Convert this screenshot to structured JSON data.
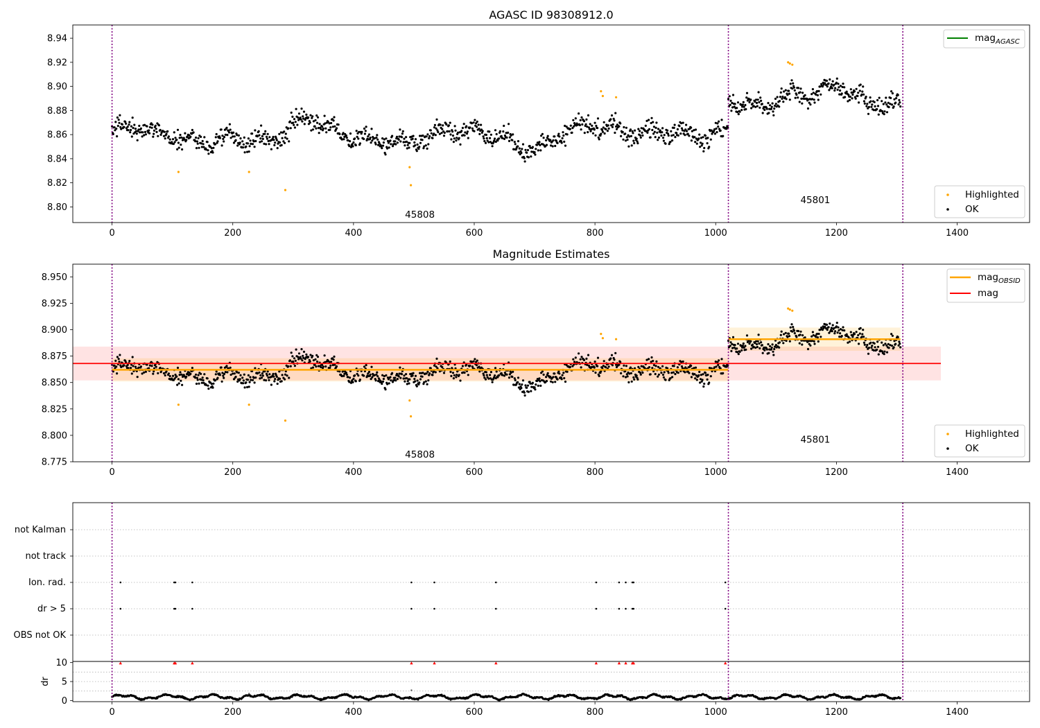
{
  "chart_data": [
    {
      "type": "scatter",
      "title": "AGASC ID 98308912.0",
      "xlim": [
        -65,
        1520
      ],
      "ylim": [
        8.787,
        8.951
      ],
      "xticks": [
        0,
        200,
        400,
        600,
        800,
        1000,
        1200,
        1400
      ],
      "yticks": [
        8.8,
        8.82,
        8.84,
        8.86,
        8.88,
        8.9,
        8.92,
        8.94
      ],
      "obsid_boundaries": [
        0,
        1021,
        1310
      ],
      "obsid_labels": [
        {
          "text": "45808",
          "x": 510,
          "y": 8.791
        },
        {
          "text": "45801",
          "x": 1165,
          "y": 8.803
        }
      ],
      "legends": [
        {
          "placement": "top-right",
          "entries": [
            {
              "label": "mag",
              "sub": "AGASC",
              "color": "#008000",
              "marker": "line"
            }
          ]
        },
        {
          "placement": "bottom-right",
          "entries": [
            {
              "label": "Highlighted",
              "color": "#ffa500",
              "marker": "dot"
            },
            {
              "label": "OK",
              "color": "#000000",
              "marker": "dot"
            }
          ]
        }
      ],
      "series": [
        {
          "name": "Highlighted",
          "color": "#ffa500",
          "points": [
            [
              110,
              8.829
            ],
            [
              227,
              8.829
            ],
            [
              287,
              8.814
            ],
            [
              493,
              8.833
            ],
            [
              495,
              8.818
            ],
            [
              810,
              8.896
            ],
            [
              813,
              8.892
            ],
            [
              835,
              8.891
            ],
            [
              1120,
              8.92
            ],
            [
              1123,
              8.919
            ],
            [
              1127,
              8.918
            ]
          ]
        },
        {
          "name": "OK",
          "color": "#000000",
          "ranges": [
            {
              "x": [
                0,
                1020
              ],
              "trend": [
                [
                  0,
                  8.863
                ],
                [
                  100,
                  8.862
                ],
                [
                  160,
                  8.852
                ],
                [
                  260,
                  8.858
                ],
                [
                  320,
                  8.87
                ],
                [
                  420,
                  8.858
                ],
                [
                  490,
                  8.85
                ],
                [
                  560,
                  8.868
                ],
                [
                  620,
                  8.86
                ],
                [
                  680,
                  8.848
                ],
                [
                  750,
                  8.862
                ],
                [
                  820,
                  8.868
                ],
                [
                  900,
                  8.86
                ],
                [
                  960,
                  8.858
                ],
                [
                  1020,
                  8.866
                ]
              ],
              "spread": 0.014
            },
            {
              "x": [
                1021,
                1306
              ],
              "trend": [
                [
                  1021,
                  8.89
                ],
                [
                  1080,
                  8.88
                ],
                [
                  1130,
                  8.894
                ],
                [
                  1200,
                  8.9
                ],
                [
                  1250,
                  8.884
                ],
                [
                  1306,
                  8.888
                ]
              ],
              "spread": 0.015
            }
          ]
        }
      ]
    },
    {
      "type": "scatter",
      "title": "Magnitude Estimates",
      "xlim": [
        -65,
        1520
      ],
      "ylim": [
        8.775,
        8.962
      ],
      "xticks": [
        0,
        200,
        400,
        600,
        800,
        1000,
        1200,
        1400
      ],
      "yticks": [
        8.775,
        8.8,
        8.825,
        8.85,
        8.875,
        8.9,
        8.925,
        8.95
      ],
      "obsid_boundaries": [
        0,
        1021,
        1310
      ],
      "obsid_labels": [
        {
          "text": "45808",
          "x": 510,
          "y": 8.779
        },
        {
          "text": "45801",
          "x": 1165,
          "y": 8.793
        }
      ],
      "bands": [
        {
          "name": "mag",
          "x": [
            -65,
            1373
          ],
          "y_center": 8.868,
          "y_range": [
            8.852,
            8.884
          ],
          "color": "#ff0000"
        },
        {
          "name": "mag_OBSID",
          "x": [
            0,
            1021
          ],
          "y_center": 8.862,
          "y_range": [
            8.851,
            8.873
          ],
          "color": "#ffa500"
        },
        {
          "name": "mag_OBSID",
          "x": [
            1021,
            1306
          ],
          "y_center": 8.891,
          "y_range": [
            8.88,
            8.902
          ],
          "color": "#ffa500"
        }
      ],
      "legends": [
        {
          "placement": "top-right",
          "entries": [
            {
              "label": "mag",
              "sub": "OBSID",
              "color": "#ffa500",
              "marker": "line"
            },
            {
              "label": "mag",
              "sub": "",
              "color": "#ff0000",
              "marker": "line"
            }
          ]
        },
        {
          "placement": "bottom-right",
          "entries": [
            {
              "label": "Highlighted",
              "color": "#ffa500",
              "marker": "dot"
            },
            {
              "label": "OK",
              "color": "#000000",
              "marker": "dot"
            }
          ]
        }
      ]
    },
    {
      "type": "scatter",
      "title": "",
      "xlim": [
        -65,
        1520
      ],
      "categories": [
        "not Kalman",
        "not track",
        "Ion. rad.",
        "dr > 5",
        "OBS not OK"
      ],
      "flag_points": {
        "Ion. rad.": [
          14,
          103,
          105,
          133,
          496,
          534,
          636,
          802,
          840,
          851,
          862,
          864,
          1016
        ],
        "dr > 5": [
          14,
          103,
          105,
          133,
          496,
          534,
          636,
          802,
          840,
          851,
          862,
          864,
          1016
        ]
      },
      "obsid_boundaries": [
        0,
        1021,
        1310
      ]
    },
    {
      "type": "scatter",
      "title": "",
      "xlim": [
        -65,
        1520
      ],
      "ylim": [
        -0.3,
        10.3
      ],
      "xticks": [
        0,
        200,
        400,
        600,
        800,
        1000,
        1200,
        1400
      ],
      "yticks": [
        0,
        5,
        10
      ],
      "ylabel": "dr",
      "clipped_markers_x": [
        14,
        103,
        105,
        133,
        496,
        534,
        636,
        802,
        840,
        851,
        862,
        864,
        1016
      ],
      "obsid_boundaries": [
        0,
        1021,
        1310
      ]
    }
  ]
}
